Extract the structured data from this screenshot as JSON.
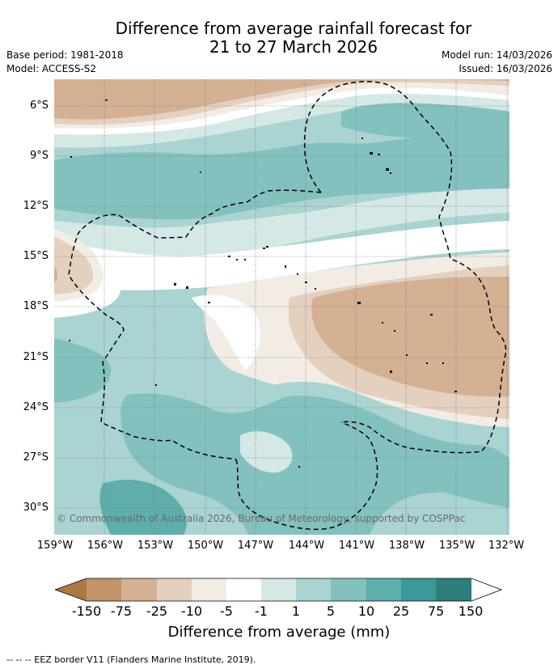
{
  "title_line1": "Difference from average rainfall forecast for",
  "title_line2": "21 to 27 March 2026",
  "base_period": "Base period: 1981-2018",
  "model": "Model: ACCESS-S2",
  "model_run": "Model run: 14/03/2026",
  "issued": "Issued: 16/03/2026",
  "lat_labels": [
    "6°S",
    "9°S",
    "12°S",
    "15°S",
    "18°S",
    "21°S",
    "24°S",
    "27°S",
    "30°S"
  ],
  "lon_labels": [
    "159°W",
    "156°W",
    "153°W",
    "150°W",
    "147°W",
    "144°W",
    "141°W",
    "138°W",
    "135°W",
    "132°W"
  ],
  "copyright": "© Commonwealth of Australia 2026, Bureau of Meteorology, supported by COSPPac",
  "colorbar": {
    "labels": [
      "-150",
      "-75",
      "-25",
      "-10",
      "-5",
      "-1",
      "1",
      "5",
      "10",
      "25",
      "75",
      "150"
    ],
    "title": "Difference from average (mm)",
    "colors": [
      "#ad7842",
      "#c39468",
      "#d4b192",
      "#e4d0bf",
      "#f2ece4",
      "#ffffff",
      "#d4e8e6",
      "#a9d4d2",
      "#83c1bf",
      "#5eaeac",
      "#3a9a98",
      "#2e7e7b"
    ]
  },
  "footnote": "--  --  -- EEZ border V11 (Flanders Marine Institute, 2019)."
}
